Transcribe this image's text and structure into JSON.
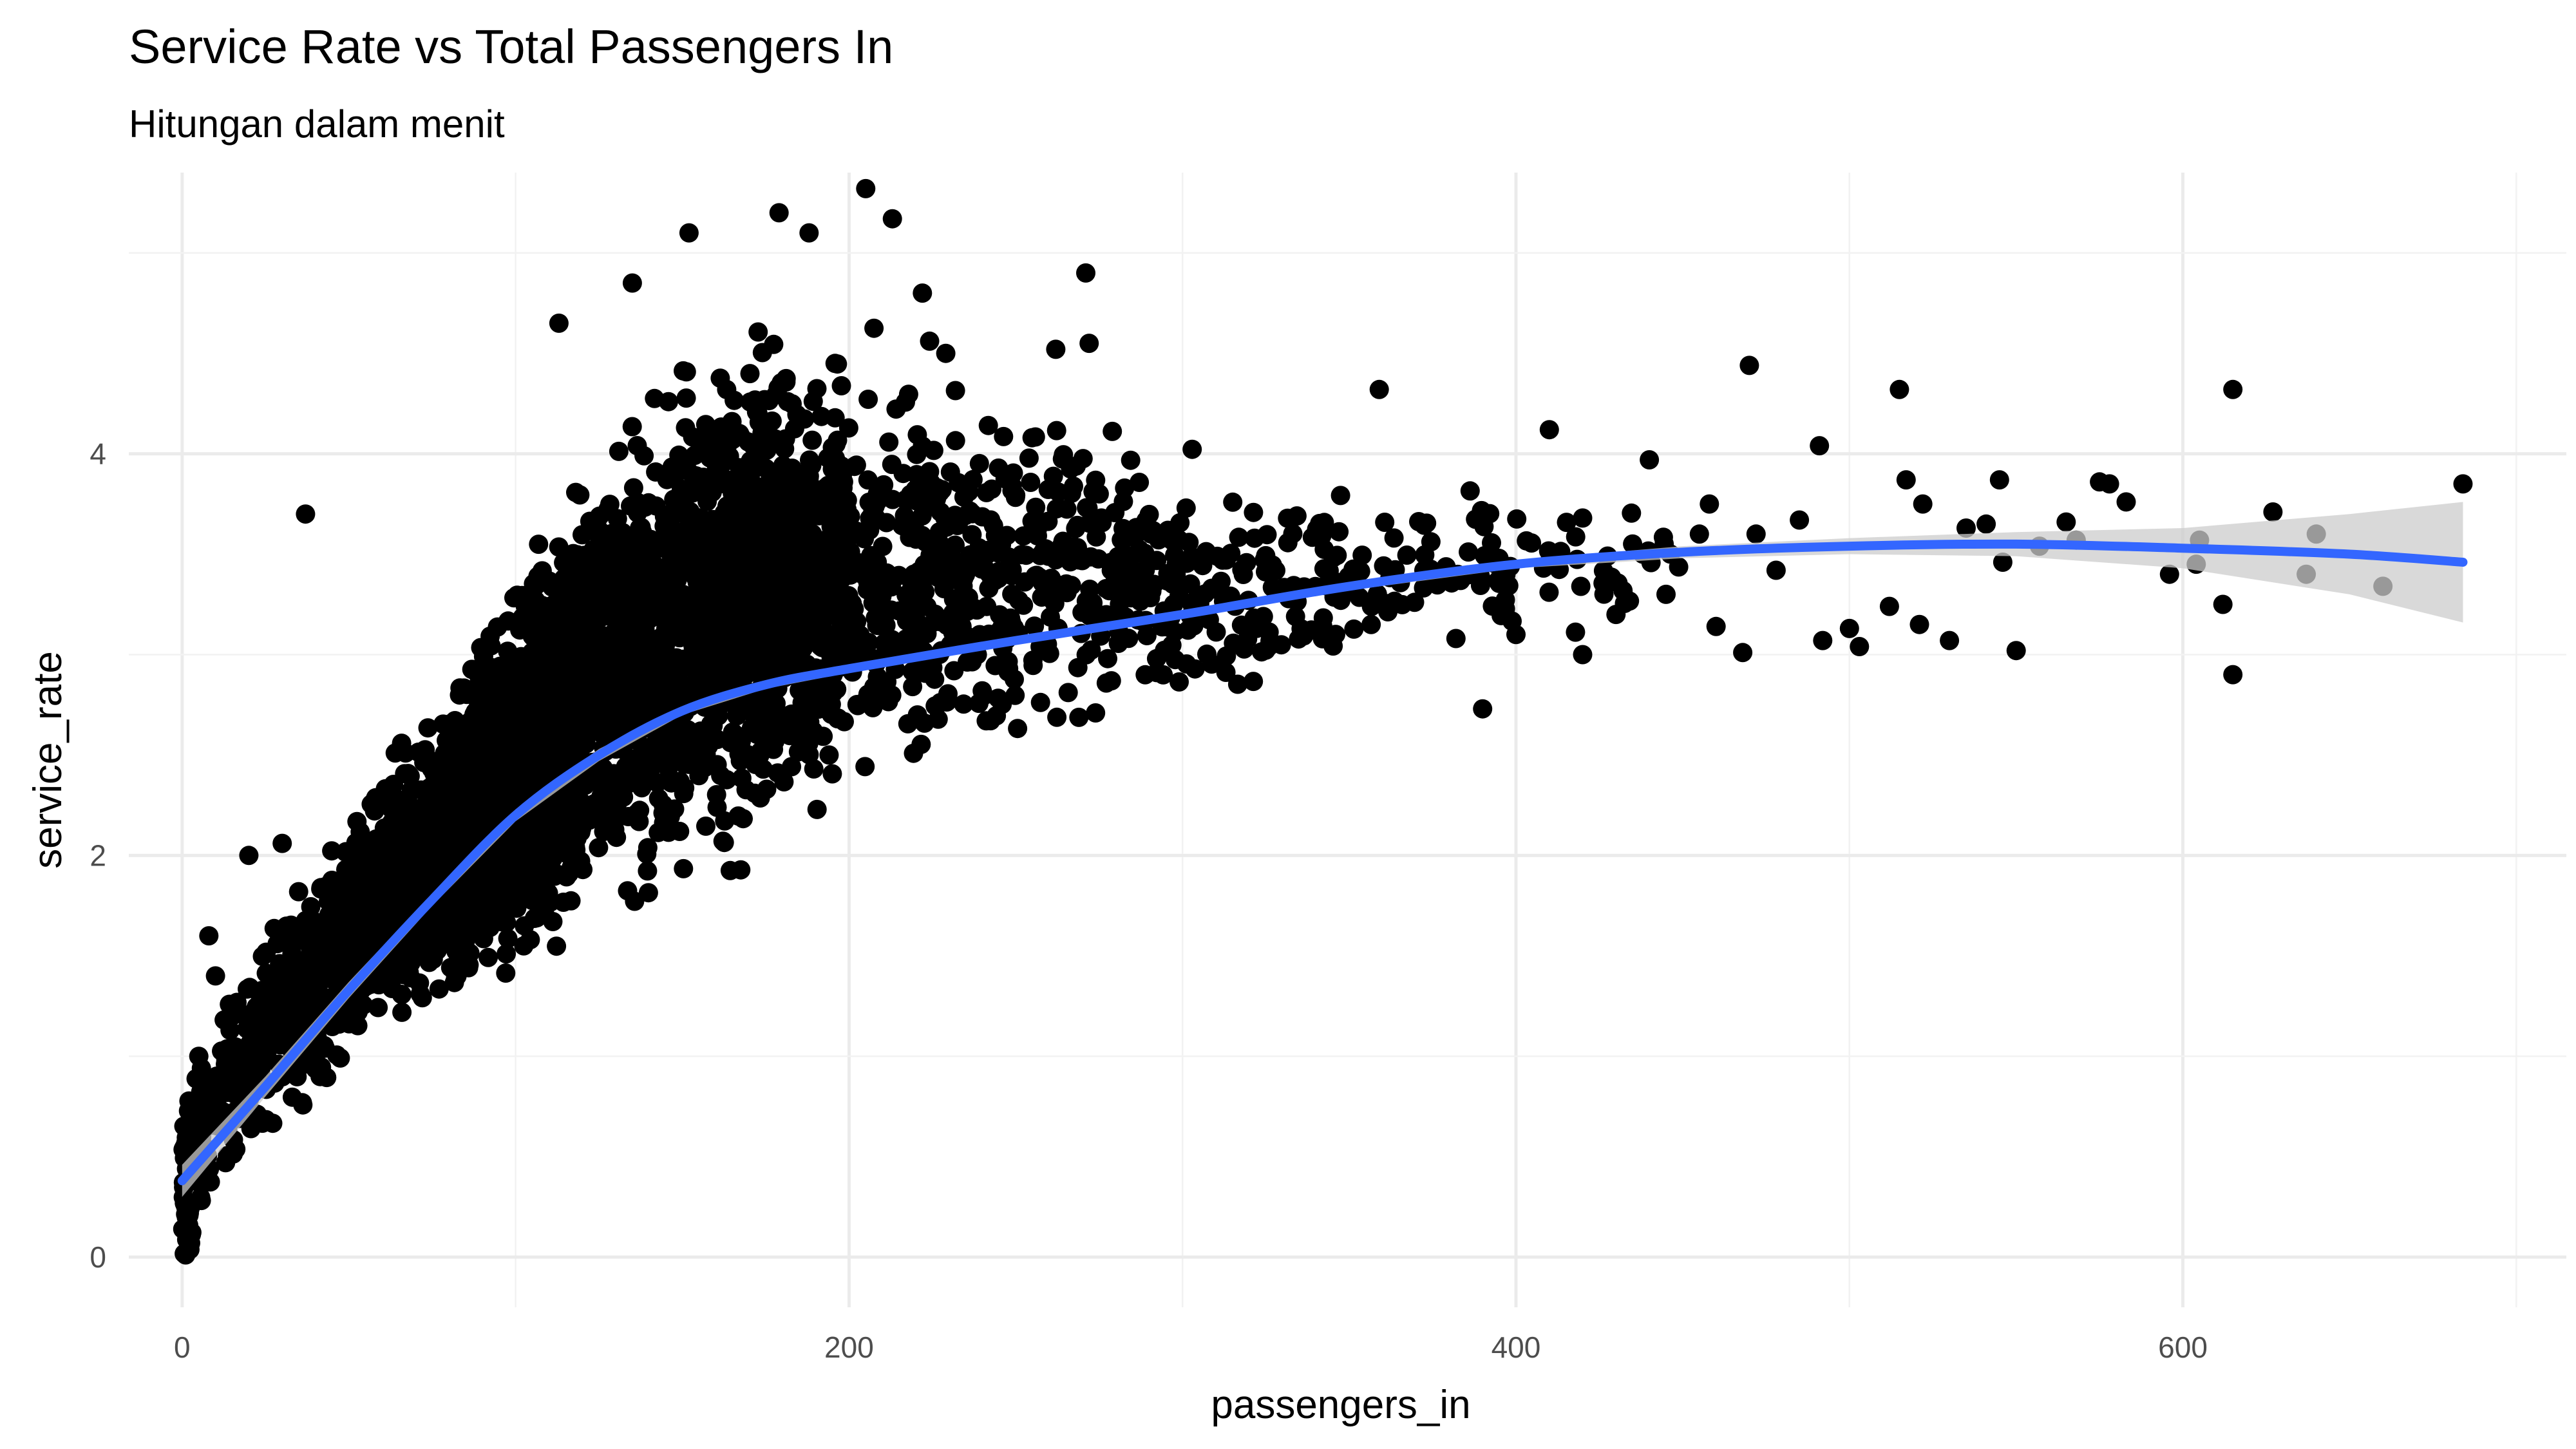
{
  "chart_data": {
    "type": "scatter",
    "title": "Service Rate vs Total Passengers In",
    "subtitle": "Hitungan dalam menit",
    "xlabel": "passengers_in",
    "ylabel": "service_rate",
    "xlim": [
      -16,
      715
    ],
    "ylim": [
      -0.25,
      5.4
    ],
    "x_ticks": [
      0,
      200,
      400,
      600
    ],
    "x_tick_labels": [
      "0",
      "200",
      "400",
      "600"
    ],
    "y_ticks": [
      0,
      2,
      4
    ],
    "y_tick_labels": [
      "0",
      "2",
      "4"
    ],
    "grid": true,
    "legend": "none",
    "colors": {
      "points": "#000000",
      "smooth": "#3366ff",
      "ribbon": "#cccccc",
      "grid_major": "#ebebeb",
      "grid_minor": "#f2f2f2"
    },
    "point_band": {
      "description_x": [
        0,
        20,
        50,
        80,
        100,
        120,
        150,
        175,
        200,
        250,
        300,
        350,
        400,
        450
      ],
      "low": [
        0.0,
        0.45,
        0.85,
        1.1,
        1.3,
        1.45,
        1.7,
        1.9,
        2.05,
        2.35,
        2.65,
        2.85,
        3.0,
        3.1
      ],
      "high": [
        0.9,
        1.6,
        2.3,
        3.0,
        3.5,
        4.1,
        4.6,
        4.8,
        4.7,
        4.5,
        4.1,
        4.0,
        3.9,
        3.8
      ],
      "density": [
        60,
        180,
        420,
        620,
        650,
        620,
        560,
        460,
        380,
        240,
        140,
        80,
        45,
        20
      ]
    },
    "outliers": [
      {
        "x": 37,
        "y": 3.7
      },
      {
        "x": 113,
        "y": 4.65
      },
      {
        "x": 135,
        "y": 4.85
      },
      {
        "x": 152,
        "y": 5.1
      },
      {
        "x": 179,
        "y": 5.2
      },
      {
        "x": 188,
        "y": 5.1
      },
      {
        "x": 205,
        "y": 5.32
      },
      {
        "x": 213,
        "y": 5.17
      },
      {
        "x": 222,
        "y": 4.8
      },
      {
        "x": 229,
        "y": 4.5
      },
      {
        "x": 262,
        "y": 4.52
      },
      {
        "x": 271,
        "y": 4.9
      },
      {
        "x": 272,
        "y": 4.55
      },
      {
        "x": 359,
        "y": 4.32
      },
      {
        "x": 410,
        "y": 4.12
      },
      {
        "x": 470,
        "y": 4.44
      },
      {
        "x": 491,
        "y": 4.04
      },
      {
        "x": 515,
        "y": 4.32
      },
      {
        "x": 615,
        "y": 4.32
      },
      {
        "x": 390,
        "y": 2.73
      },
      {
        "x": 615,
        "y": 2.9
      },
      {
        "x": 684,
        "y": 3.85
      },
      {
        "x": 660,
        "y": 3.34
      },
      {
        "x": 640,
        "y": 3.6
      },
      {
        "x": 637,
        "y": 3.4
      },
      {
        "x": 627,
        "y": 3.71
      },
      {
        "x": 612,
        "y": 3.25
      },
      {
        "x": 605,
        "y": 3.57
      },
      {
        "x": 604,
        "y": 3.45
      },
      {
        "x": 596,
        "y": 3.4
      },
      {
        "x": 583,
        "y": 3.76
      },
      {
        "x": 578,
        "y": 3.85
      },
      {
        "x": 575,
        "y": 3.86
      },
      {
        "x": 568,
        "y": 3.57
      },
      {
        "x": 565,
        "y": 3.66
      },
      {
        "x": 557,
        "y": 3.54
      },
      {
        "x": 550,
        "y": 3.02
      },
      {
        "x": 546,
        "y": 3.46
      },
      {
        "x": 545,
        "y": 3.87
      },
      {
        "x": 541,
        "y": 3.65
      },
      {
        "x": 535,
        "y": 3.63
      },
      {
        "x": 530,
        "y": 3.07
      },
      {
        "x": 522,
        "y": 3.75
      },
      {
        "x": 521,
        "y": 3.15
      },
      {
        "x": 517,
        "y": 3.87
      },
      {
        "x": 512,
        "y": 3.24
      },
      {
        "x": 503,
        "y": 3.04
      },
      {
        "x": 500,
        "y": 3.13
      },
      {
        "x": 492,
        "y": 3.07
      },
      {
        "x": 485,
        "y": 3.67
      },
      {
        "x": 478,
        "y": 3.42
      },
      {
        "x": 472,
        "y": 3.6
      },
      {
        "x": 468,
        "y": 3.01
      },
      {
        "x": 458,
        "y": 3.75
      },
      {
        "x": 440,
        "y": 3.97
      },
      {
        "x": 420,
        "y": 3.68
      },
      {
        "x": 445,
        "y": 3.3
      },
      {
        "x": 430,
        "y": 3.2
      },
      {
        "x": 440,
        "y": 3.5
      },
      {
        "x": 420,
        "y": 3.0
      },
      {
        "x": 455,
        "y": 3.6
      },
      {
        "x": 460,
        "y": 3.14
      },
      {
        "x": 400,
        "y": 3.1
      },
      {
        "x": 382,
        "y": 3.08
      },
      {
        "x": 15,
        "y": 1.2
      },
      {
        "x": 20,
        "y": 2.0
      },
      {
        "x": 30,
        "y": 2.06
      },
      {
        "x": 8,
        "y": 1.6
      },
      {
        "x": 10,
        "y": 1.4
      },
      {
        "x": 5,
        "y": 1.0
      }
    ],
    "smooth": {
      "x": [
        0,
        25,
        50,
        75,
        100,
        125,
        150,
        175,
        200,
        250,
        300,
        350,
        400,
        450,
        500,
        550,
        600,
        650,
        684
      ],
      "y": [
        0.38,
        0.85,
        1.33,
        1.78,
        2.2,
        2.5,
        2.72,
        2.85,
        2.93,
        3.07,
        3.2,
        3.34,
        3.45,
        3.51,
        3.54,
        3.55,
        3.53,
        3.5,
        3.46
      ],
      "lower": [
        0.3,
        0.8,
        1.29,
        1.75,
        2.17,
        2.47,
        2.7,
        2.83,
        2.91,
        3.05,
        3.18,
        3.32,
        3.43,
        3.48,
        3.5,
        3.49,
        3.43,
        3.3,
        3.16
      ],
      "upper": [
        0.46,
        0.9,
        1.37,
        1.81,
        2.23,
        2.53,
        2.74,
        2.87,
        2.95,
        3.09,
        3.22,
        3.36,
        3.47,
        3.54,
        3.58,
        3.61,
        3.63,
        3.7,
        3.76
      ]
    }
  }
}
